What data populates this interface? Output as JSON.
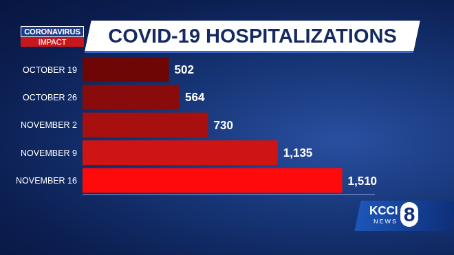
{
  "chart_data": {
    "type": "bar",
    "title": "COVID-19 HOSPITALIZATIONS",
    "orientation": "horizontal",
    "categories": [
      "OCTOBER 19",
      "OCTOBER 26",
      "NOVEMBER 2",
      "NOVEMBER 9",
      "NOVEMBER 16"
    ],
    "values": [
      502,
      564,
      730,
      1135,
      1510
    ],
    "value_labels": [
      "502",
      "564",
      "730",
      "1,135",
      "1,510"
    ],
    "colors": [
      "#6e0606",
      "#8a0b0b",
      "#a81010",
      "#cf1414",
      "#ff0a0a"
    ],
    "xlim": [
      0,
      1700
    ],
    "data_labels": true,
    "tick_labels": "y",
    "grid": false,
    "annotations": [
      "CORONAVIRUS",
      "IMPACT",
      "KCCI",
      "8",
      "NEWS"
    ]
  }
}
